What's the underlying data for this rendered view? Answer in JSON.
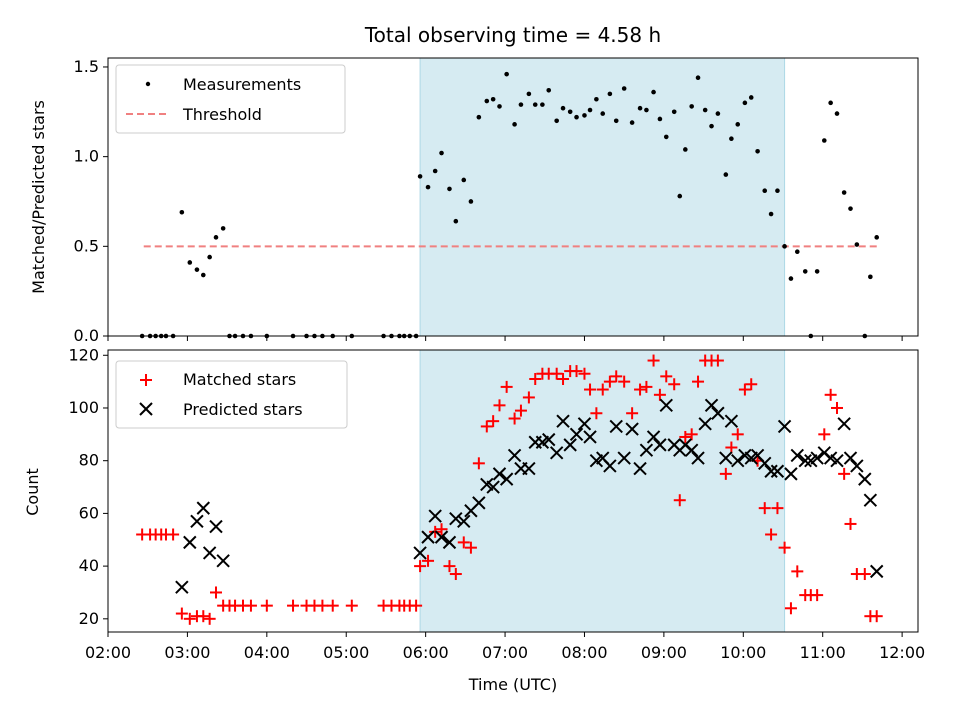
{
  "chart_data": [
    {
      "type": "scatter",
      "title": "Total observing time = 4.58 h",
      "ylabel": "Matched/Predicted stars",
      "ylim": [
        0,
        1.55
      ],
      "yticks": [
        "0.0",
        "0.5",
        "1.0",
        "1.5"
      ],
      "xlim": [
        2.0,
        12.2
      ],
      "shaded_span": [
        5.93,
        10.52
      ],
      "legend": "top-left",
      "threshold": {
        "name": "Threshold",
        "value": 0.5,
        "x_range": [
          2.45,
          11.72
        ],
        "color": "#f08080"
      },
      "series": [
        {
          "name": "Measurements",
          "color": "#000000",
          "points": [
            [
              2.43,
              0
            ],
            [
              2.53,
              0
            ],
            [
              2.6,
              0
            ],
            [
              2.67,
              0
            ],
            [
              2.73,
              0
            ],
            [
              2.82,
              0
            ],
            [
              2.93,
              0.69
            ],
            [
              3.03,
              0.41
            ],
            [
              3.12,
              0.37
            ],
            [
              3.2,
              0.34
            ],
            [
              3.28,
              0.44
            ],
            [
              3.36,
              0.55
            ],
            [
              3.45,
              0.6
            ],
            [
              3.53,
              0
            ],
            [
              3.6,
              0
            ],
            [
              3.7,
              0
            ],
            [
              3.8,
              0
            ],
            [
              4.0,
              0
            ],
            [
              4.33,
              0
            ],
            [
              4.5,
              0
            ],
            [
              4.6,
              0
            ],
            [
              4.7,
              0
            ],
            [
              4.83,
              0
            ],
            [
              5.07,
              0
            ],
            [
              5.47,
              0
            ],
            [
              5.57,
              0
            ],
            [
              5.67,
              0
            ],
            [
              5.73,
              0
            ],
            [
              5.8,
              0
            ],
            [
              5.88,
              0
            ],
            [
              5.93,
              0.89
            ],
            [
              6.03,
              0.83
            ],
            [
              6.12,
              0.92
            ],
            [
              6.2,
              1.02
            ],
            [
              6.3,
              0.82
            ],
            [
              6.38,
              0.64
            ],
            [
              6.48,
              0.87
            ],
            [
              6.57,
              0.75
            ],
            [
              6.67,
              1.22
            ],
            [
              6.77,
              1.31
            ],
            [
              6.85,
              1.32
            ],
            [
              6.93,
              1.28
            ],
            [
              7.02,
              1.46
            ],
            [
              7.12,
              1.18
            ],
            [
              7.2,
              1.29
            ],
            [
              7.3,
              1.35
            ],
            [
              7.38,
              1.29
            ],
            [
              7.47,
              1.29
            ],
            [
              7.55,
              1.37
            ],
            [
              7.65,
              1.2
            ],
            [
              7.73,
              1.27
            ],
            [
              7.82,
              1.25
            ],
            [
              7.9,
              1.22
            ],
            [
              8.0,
              1.23
            ],
            [
              8.07,
              1.26
            ],
            [
              8.15,
              1.32
            ],
            [
              8.23,
              1.24
            ],
            [
              8.32,
              1.35
            ],
            [
              8.4,
              1.2
            ],
            [
              8.5,
              1.38
            ],
            [
              8.6,
              1.19
            ],
            [
              8.7,
              1.27
            ],
            [
              8.78,
              1.26
            ],
            [
              8.87,
              1.36
            ],
            [
              8.95,
              1.21
            ],
            [
              9.03,
              1.11
            ],
            [
              9.13,
              1.25
            ],
            [
              9.2,
              0.78
            ],
            [
              9.27,
              1.04
            ],
            [
              9.35,
              1.28
            ],
            [
              9.43,
              1.44
            ],
            [
              9.52,
              1.26
            ],
            [
              9.6,
              1.17
            ],
            [
              9.68,
              1.24
            ],
            [
              9.78,
              0.9
            ],
            [
              9.85,
              1.1
            ],
            [
              9.93,
              1.18
            ],
            [
              10.02,
              1.3
            ],
            [
              10.1,
              1.33
            ],
            [
              10.18,
              1.03
            ],
            [
              10.27,
              0.81
            ],
            [
              10.35,
              0.68
            ],
            [
              10.43,
              0.81
            ],
            [
              10.52,
              0.5
            ],
            [
              10.6,
              0.32
            ],
            [
              10.68,
              0.47
            ],
            [
              10.78,
              0.36
            ],
            [
              10.85,
              0
            ],
            [
              10.93,
              0.36
            ],
            [
              11.02,
              1.09
            ],
            [
              11.1,
              1.3
            ],
            [
              11.18,
              1.24
            ],
            [
              11.27,
              0.8
            ],
            [
              11.35,
              0.71
            ],
            [
              11.43,
              0.51
            ],
            [
              11.53,
              0
            ],
            [
              11.6,
              0.33
            ],
            [
              11.68,
              0.55
            ]
          ]
        }
      ]
    },
    {
      "type": "scatter",
      "xlabel": "Time (UTC)",
      "ylabel": "Count",
      "ylim": [
        15,
        122
      ],
      "yticks": [
        "20",
        "40",
        "60",
        "80",
        "100",
        "120"
      ],
      "xlim": [
        2.0,
        12.2
      ],
      "xticks": [
        "02:00",
        "03:00",
        "04:00",
        "05:00",
        "06:00",
        "07:00",
        "08:00",
        "09:00",
        "10:00",
        "11:00",
        "12:00"
      ],
      "shaded_span": [
        5.93,
        10.52
      ],
      "legend": "top-left",
      "series": [
        {
          "name": "Matched stars",
          "marker": "plus",
          "color": "#ff0000",
          "points": [
            [
              2.43,
              52
            ],
            [
              2.53,
              52
            ],
            [
              2.6,
              52
            ],
            [
              2.67,
              52
            ],
            [
              2.73,
              52
            ],
            [
              2.82,
              52
            ],
            [
              2.93,
              22
            ],
            [
              3.03,
              20
            ],
            [
              3.12,
              21
            ],
            [
              3.2,
              21
            ],
            [
              3.28,
              20
            ],
            [
              3.36,
              30
            ],
            [
              3.45,
              25
            ],
            [
              3.53,
              25
            ],
            [
              3.6,
              25
            ],
            [
              3.7,
              25
            ],
            [
              3.8,
              25
            ],
            [
              4.0,
              25
            ],
            [
              4.33,
              25
            ],
            [
              4.5,
              25
            ],
            [
              4.6,
              25
            ],
            [
              4.7,
              25
            ],
            [
              4.83,
              25
            ],
            [
              5.07,
              25
            ],
            [
              5.47,
              25
            ],
            [
              5.57,
              25
            ],
            [
              5.67,
              25
            ],
            [
              5.73,
              25
            ],
            [
              5.8,
              25
            ],
            [
              5.88,
              25
            ],
            [
              5.93,
              40
            ],
            [
              6.03,
              42
            ],
            [
              6.12,
              53
            ],
            [
              6.2,
              54
            ],
            [
              6.3,
              40
            ],
            [
              6.38,
              37
            ],
            [
              6.48,
              49
            ],
            [
              6.57,
              47
            ],
            [
              6.67,
              79
            ],
            [
              6.77,
              93
            ],
            [
              6.85,
              95
            ],
            [
              6.93,
              101
            ],
            [
              7.02,
              108
            ],
            [
              7.12,
              96
            ],
            [
              7.2,
              99
            ],
            [
              7.3,
              104
            ],
            [
              7.38,
              111
            ],
            [
              7.47,
              113
            ],
            [
              7.55,
              113
            ],
            [
              7.65,
              113
            ],
            [
              7.73,
              111
            ],
            [
              7.82,
              114
            ],
            [
              7.9,
              114
            ],
            [
              8.0,
              113
            ],
            [
              8.07,
              107
            ],
            [
              8.15,
              98
            ],
            [
              8.23,
              107
            ],
            [
              8.32,
              110
            ],
            [
              8.4,
              112
            ],
            [
              8.5,
              110
            ],
            [
              8.6,
              98
            ],
            [
              8.7,
              107
            ],
            [
              8.78,
              108
            ],
            [
              8.87,
              118
            ],
            [
              8.95,
              105
            ],
            [
              9.03,
              112
            ],
            [
              9.13,
              109
            ],
            [
              9.2,
              65
            ],
            [
              9.27,
              89
            ],
            [
              9.35,
              90
            ],
            [
              9.43,
              110
            ],
            [
              9.52,
              118
            ],
            [
              9.6,
              118
            ],
            [
              9.68,
              118
            ],
            [
              9.78,
              75
            ],
            [
              9.85,
              85
            ],
            [
              9.93,
              90
            ],
            [
              10.02,
              107
            ],
            [
              10.1,
              109
            ],
            [
              10.18,
              80
            ],
            [
              10.27,
              62
            ],
            [
              10.35,
              52
            ],
            [
              10.43,
              62
            ],
            [
              10.52,
              47
            ],
            [
              10.6,
              24
            ],
            [
              10.68,
              38
            ],
            [
              10.78,
              29
            ],
            [
              10.85,
              29
            ],
            [
              10.93,
              29
            ],
            [
              11.02,
              90
            ],
            [
              11.1,
              105
            ],
            [
              11.18,
              100
            ],
            [
              11.27,
              75
            ],
            [
              11.35,
              56
            ],
            [
              11.43,
              37
            ],
            [
              11.53,
              37
            ],
            [
              11.6,
              21
            ],
            [
              11.68,
              21
            ]
          ]
        },
        {
          "name": "Predicted stars",
          "marker": "x",
          "color": "#000000",
          "points": [
            [
              2.93,
              32
            ],
            [
              3.03,
              49
            ],
            [
              3.12,
              57
            ],
            [
              3.2,
              62
            ],
            [
              3.28,
              45
            ],
            [
              3.36,
              55
            ],
            [
              3.45,
              42
            ],
            [
              5.93,
              45
            ],
            [
              6.03,
              51
            ],
            [
              6.12,
              59
            ],
            [
              6.2,
              51
            ],
            [
              6.3,
              49
            ],
            [
              6.38,
              58
            ],
            [
              6.48,
              57
            ],
            [
              6.57,
              61
            ],
            [
              6.67,
              64
            ],
            [
              6.77,
              71
            ],
            [
              6.85,
              70
            ],
            [
              6.93,
              75
            ],
            [
              7.02,
              73
            ],
            [
              7.12,
              82
            ],
            [
              7.2,
              77
            ],
            [
              7.3,
              77
            ],
            [
              7.38,
              87
            ],
            [
              7.47,
              87
            ],
            [
              7.55,
              88
            ],
            [
              7.65,
              83
            ],
            [
              7.73,
              95
            ],
            [
              7.82,
              86
            ],
            [
              7.9,
              90
            ],
            [
              8.0,
              94
            ],
            [
              8.07,
              89
            ],
            [
              8.15,
              80
            ],
            [
              8.23,
              81
            ],
            [
              8.32,
              78
            ],
            [
              8.4,
              93
            ],
            [
              8.5,
              81
            ],
            [
              8.6,
              92
            ],
            [
              8.7,
              77
            ],
            [
              8.78,
              84
            ],
            [
              8.87,
              89
            ],
            [
              8.95,
              86
            ],
            [
              9.03,
              101
            ],
            [
              9.13,
              86
            ],
            [
              9.2,
              84
            ],
            [
              9.27,
              86
            ],
            [
              9.35,
              84
            ],
            [
              9.43,
              81
            ],
            [
              9.52,
              94
            ],
            [
              9.6,
              101
            ],
            [
              9.68,
              98
            ],
            [
              9.78,
              81
            ],
            [
              9.85,
              95
            ],
            [
              9.93,
              80
            ],
            [
              10.02,
              82
            ],
            [
              10.1,
              81
            ],
            [
              10.18,
              82
            ],
            [
              10.27,
              79
            ],
            [
              10.35,
              76
            ],
            [
              10.43,
              76
            ],
            [
              10.52,
              93
            ],
            [
              10.6,
              75
            ],
            [
              10.68,
              82
            ],
            [
              10.78,
              80
            ],
            [
              10.85,
              80
            ],
            [
              10.93,
              81
            ],
            [
              11.02,
              83
            ],
            [
              11.1,
              81
            ],
            [
              11.18,
              80
            ],
            [
              11.27,
              94
            ],
            [
              11.35,
              81
            ],
            [
              11.43,
              78
            ],
            [
              11.53,
              73
            ],
            [
              11.6,
              65
            ],
            [
              11.68,
              38
            ]
          ]
        }
      ]
    }
  ]
}
